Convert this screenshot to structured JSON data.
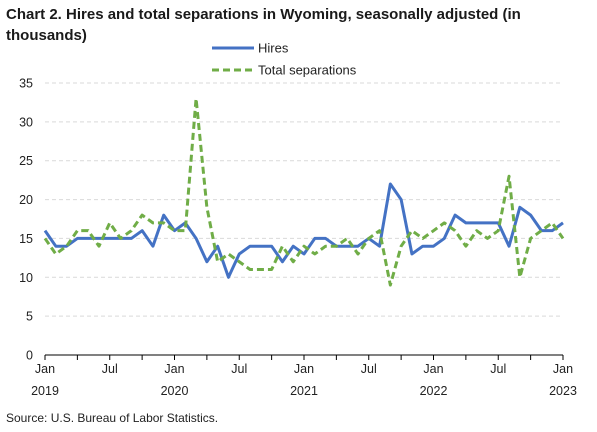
{
  "title": "Chart 2. Hires and total separations in Wyoming, seasonally adjusted (in thousands)",
  "source": "Source: U.S. Bureau of Labor Statistics.",
  "colors": {
    "hires": "#4472c4",
    "separations": "#70ad47",
    "grid": "#d9d9d9",
    "axis": "#000000"
  },
  "chart_data": {
    "type": "line",
    "xlabel": "",
    "ylabel": "",
    "ylim": [
      0,
      35
    ],
    "yticks": [
      0,
      5,
      10,
      15,
      20,
      25,
      30,
      35
    ],
    "grid": "horizontal dashed",
    "legend_position": "top-center",
    "x_tick_labels": [
      {
        "index": 0,
        "month": "Jan",
        "year": "2019"
      },
      {
        "index": 6,
        "month": "Jul",
        "year": ""
      },
      {
        "index": 12,
        "month": "Jan",
        "year": "2020"
      },
      {
        "index": 18,
        "month": "Jul",
        "year": ""
      },
      {
        "index": 24,
        "month": "Jan",
        "year": "2021"
      },
      {
        "index": 30,
        "month": "Jul",
        "year": ""
      },
      {
        "index": 36,
        "month": "Jan",
        "year": "2022"
      },
      {
        "index": 42,
        "month": "Jul",
        "year": ""
      },
      {
        "index": 48,
        "month": "Jan",
        "year": "2023"
      }
    ],
    "x": [
      "Jan 2019",
      "Feb 2019",
      "Mar 2019",
      "Apr 2019",
      "May 2019",
      "Jun 2019",
      "Jul 2019",
      "Aug 2019",
      "Sep 2019",
      "Oct 2019",
      "Nov 2019",
      "Dec 2019",
      "Jan 2020",
      "Feb 2020",
      "Mar 2020",
      "Apr 2020",
      "May 2020",
      "Jun 2020",
      "Jul 2020",
      "Aug 2020",
      "Sep 2020",
      "Oct 2020",
      "Nov 2020",
      "Dec 2020",
      "Jan 2021",
      "Feb 2021",
      "Mar 2021",
      "Apr 2021",
      "May 2021",
      "Jun 2021",
      "Jul 2021",
      "Aug 2021",
      "Sep 2021",
      "Oct 2021",
      "Nov 2021",
      "Dec 2021",
      "Jan 2022",
      "Feb 2022",
      "Mar 2022",
      "Apr 2022",
      "May 2022",
      "Jun 2022",
      "Jul 2022",
      "Aug 2022",
      "Sep 2022",
      "Oct 2022",
      "Nov 2022",
      "Dec 2022",
      "Jan 2023"
    ],
    "series": [
      {
        "name": "Hires",
        "style": "solid",
        "values": [
          16,
          14,
          14,
          15,
          15,
          15,
          15,
          15,
          15,
          16,
          14,
          18,
          16,
          17,
          15,
          12,
          14,
          10,
          13,
          14,
          14,
          14,
          12,
          14,
          13,
          15,
          15,
          14,
          14,
          14,
          15,
          14,
          22,
          20,
          13,
          14,
          14,
          15,
          18,
          17,
          17,
          17,
          17,
          14,
          19,
          18,
          16,
          16,
          17
        ]
      },
      {
        "name": "Total separations",
        "style": "dashed",
        "values": [
          15,
          13,
          14,
          16,
          16,
          14,
          17,
          15,
          16,
          18,
          17,
          17,
          16,
          16,
          33,
          19,
          12,
          13,
          12,
          11,
          11,
          11,
          14,
          12,
          14,
          13,
          14,
          14,
          15,
          13,
          15,
          16,
          9,
          14,
          16,
          15,
          16,
          17,
          16,
          14,
          16,
          15,
          16,
          23,
          10,
          15,
          16,
          17,
          15
        ]
      }
    ]
  }
}
